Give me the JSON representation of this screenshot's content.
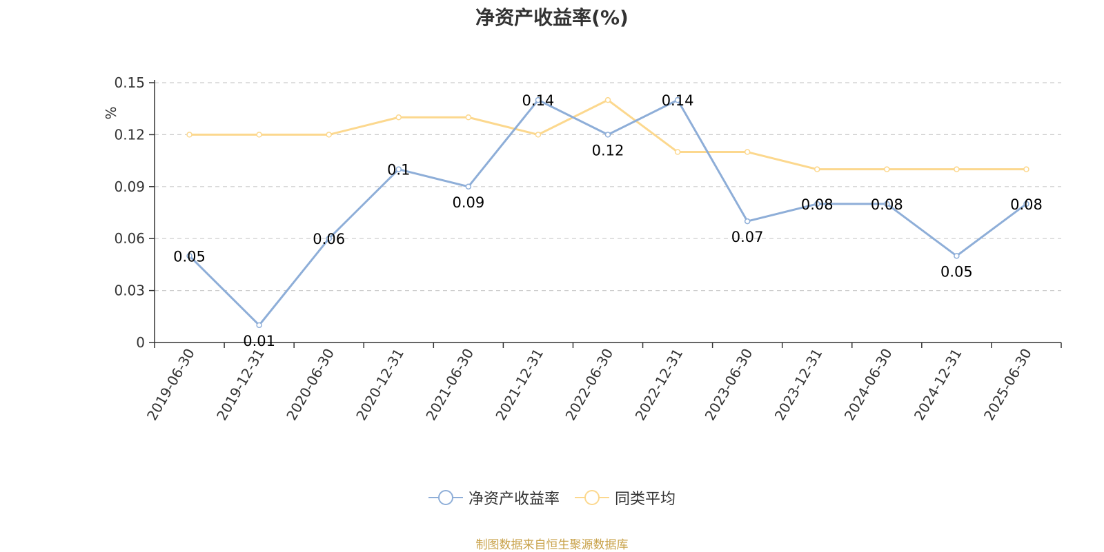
{
  "chart_data": {
    "type": "line",
    "title": "净资产收益率(%)",
    "ylabel": "%",
    "x": [
      "2019-06-30",
      "2019-12-31",
      "2020-06-30",
      "2020-12-31",
      "2021-06-30",
      "2021-12-31",
      "2022-06-30",
      "2022-12-31",
      "2023-06-30",
      "2023-12-31",
      "2024-06-30",
      "2024-12-31",
      "2025-06-30"
    ],
    "yticks": [
      "0",
      "0.03",
      "0.06",
      "0.09",
      "0.12",
      "0.15"
    ],
    "ylim": [
      0,
      0.15
    ],
    "grid": true,
    "legend_position": "bottom",
    "series": [
      {
        "name": "净资产收益率",
        "color": "#8eaed8",
        "values": [
          0.05,
          0.01,
          0.06,
          0.1,
          0.09,
          0.14,
          0.12,
          0.14,
          0.07,
          0.08,
          0.08,
          0.05,
          0.08
        ],
        "labels": [
          "0.05",
          "0.01",
          "0.06",
          "0.1",
          "0.09",
          "0.14",
          "0.12",
          "0.14",
          "0.07",
          "0.08",
          "0.08",
          "0.05",
          "0.08"
        ]
      },
      {
        "name": "同类平均",
        "color": "#fcd88e",
        "values": [
          0.12,
          0.12,
          0.12,
          0.13,
          0.13,
          0.12,
          0.14,
          0.11,
          0.11,
          0.1,
          0.1,
          0.1,
          0.1
        ]
      }
    ]
  },
  "ylabel_color": "#e8322b",
  "source_note": "制图数据来自恒生聚源数据库"
}
